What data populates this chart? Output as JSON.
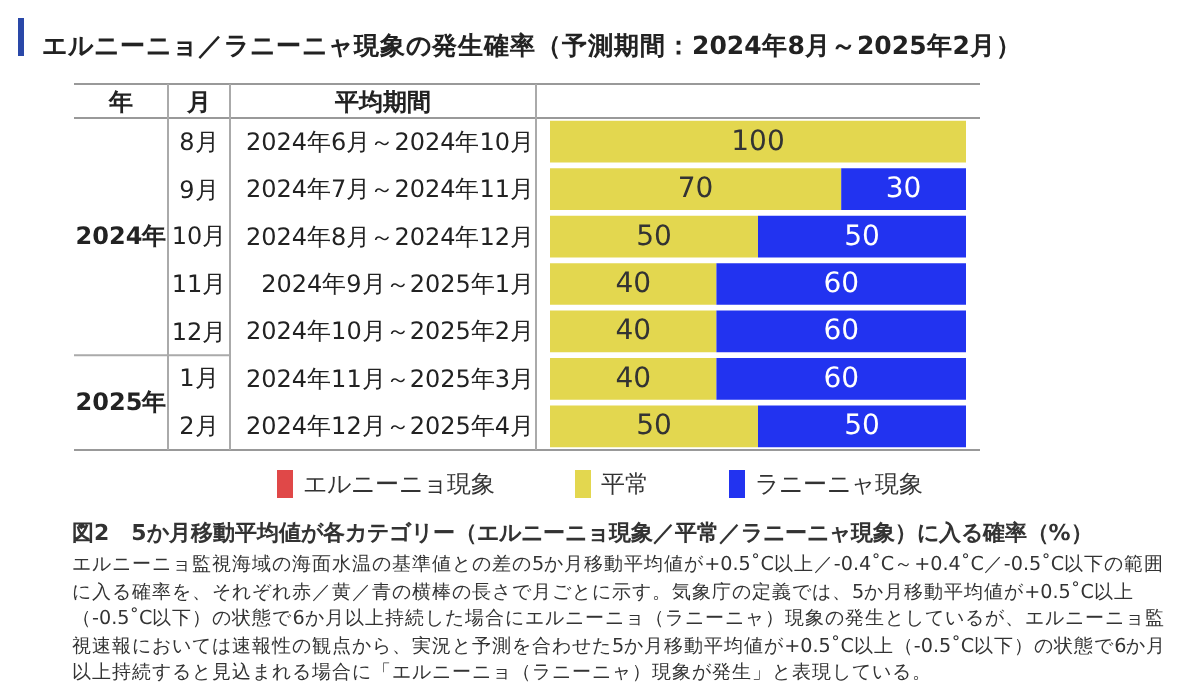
{
  "chart_data": {
    "type": "bar",
    "orientation": "horizontal",
    "stacked": true,
    "title": "エルニーニョ／ラニーニャ現象の発生確率（予測期間：2024年8月～2025年2月）",
    "categories": [
      "2024年6月～2024年10月",
      "2024年7月～2024年11月",
      "2024年8月～2024年12月",
      "2024年9月～2025年1月",
      "2024年10月～2025年2月",
      "2024年11月～2025年3月",
      "2024年12月～2025年4月"
    ],
    "series": [
      {
        "name": "エルニーニョ現象",
        "color": "#e04848",
        "values": [
          0,
          0,
          0,
          0,
          0,
          0,
          0
        ],
        "value_labels": [
          null,
          null,
          null,
          null,
          null,
          null,
          null
        ]
      },
      {
        "name": "平常",
        "color": "#e3d74f",
        "values": [
          100,
          70,
          50,
          40,
          40,
          40,
          50
        ],
        "value_labels": [
          "100",
          "70",
          "50",
          "40",
          "40",
          "40",
          "50"
        ]
      },
      {
        "name": "ラニーニャ現象",
        "color": "#2233f0",
        "values": [
          0,
          30,
          50,
          60,
          60,
          60,
          50
        ],
        "value_labels": [
          null,
          "30",
          "50",
          "60",
          "60",
          "60",
          "50"
        ]
      }
    ],
    "legend": "bottom",
    "annotations": [
      "年",
      "月",
      "平均期間",
      "8月",
      "9月",
      "10月",
      "11月",
      "12月",
      "1月",
      "2月",
      "2024年",
      "2025年",
      "図2　5か月移動平均値が各カテゴリー（エルニーニョ現象／平常／ラニーニャ現象）に入る確率（%）",
      "エルニーニョ監視海域の海面水温の基準値との差の5か月移動平均値が+0.5˚C以上／-0.4˚C～+0.4˚C／-0.5˚C以下の範囲に入る確率を、それぞれ赤／黄／青の横棒の長さで月ごとに示す。気象庁の定義では、5か月移動平均値が+0.5˚C以上（-0.5˚C以下）の状態で6か月以上持続した場合にエルニーニョ（ラニーニャ）現象の発生としているが、エルニーニョ監視速報においては速報性の観点から、実況と予測を合わせた5か月移動平均値が+0.5˚C以上（-0.5˚C以下）の状態で6か月以上持続すると見込まれる場合に「エルニーニョ（ラニーニャ）現象が発生」と表現している。"
    ]
  }
}
